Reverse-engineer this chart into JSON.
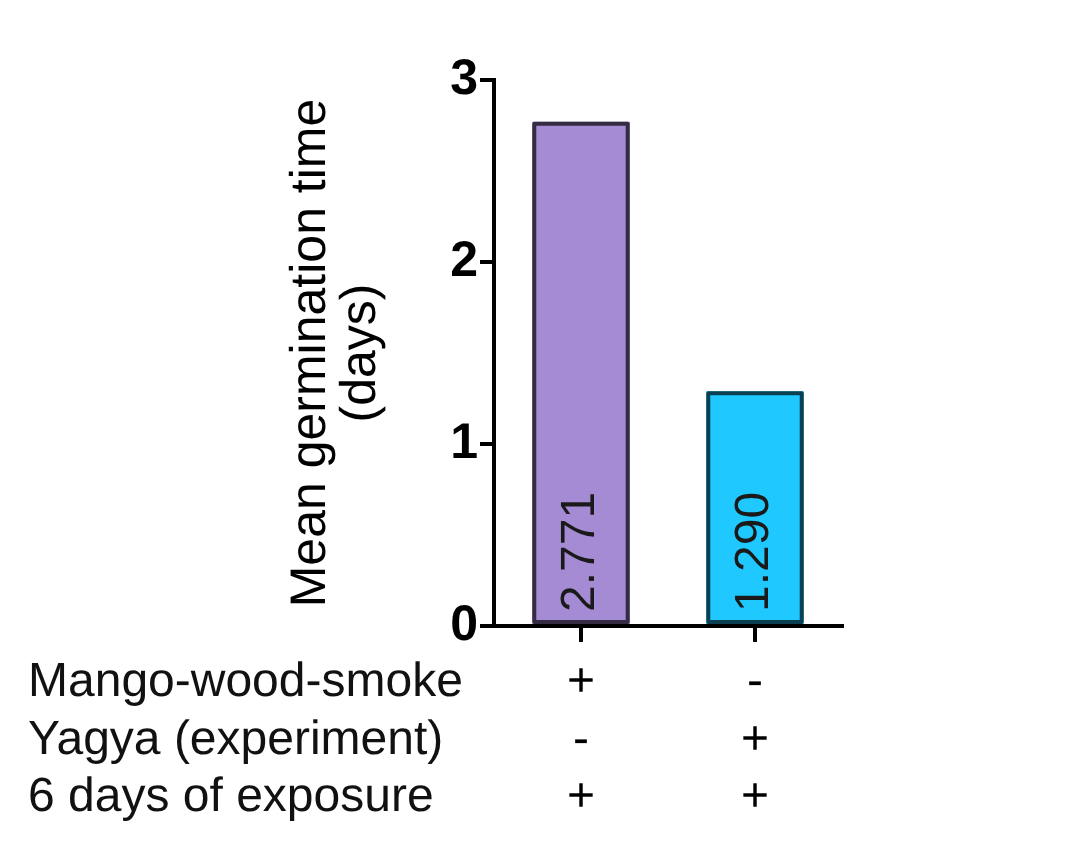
{
  "chart_data": {
    "type": "bar",
    "ylabel": "Mean germination time (days)",
    "categories": [
      "+\n-\n+",
      "-\n+\n+"
    ],
    "values": [
      2.771,
      1.29
    ],
    "colors": [
      "#a58ad4",
      "#1fc8fe"
    ],
    "value_labels": [
      "2.771",
      "1.290"
    ],
    "ylim": [
      0,
      3
    ],
    "yticks": [
      0,
      1,
      2,
      3
    ],
    "grid": false,
    "annotations": [
      "Mango-wood-smoke",
      "Yagya (experiment)",
      "6 days of exposure"
    ]
  }
}
